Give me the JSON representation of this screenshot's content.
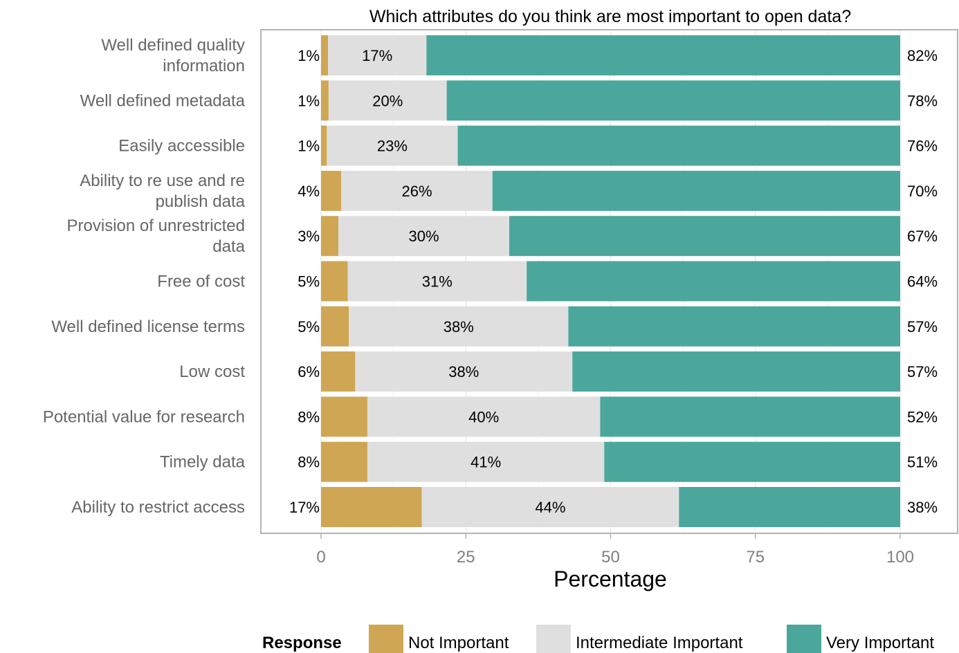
{
  "chart_data": {
    "type": "bar",
    "orientation": "horizontal",
    "stacked": true,
    "title": "Which attributes do you think are most important to open data?",
    "xlabel": "Percentage",
    "ylabel": "",
    "xlim": [
      0,
      100
    ],
    "xticks": [
      0,
      25,
      50,
      75,
      100
    ],
    "grid": true,
    "legend": {
      "title": "Response",
      "position": "bottom"
    },
    "categories": [
      "Well defined quality information",
      "Well defined metadata",
      "Easily accessible",
      "Ability to re use and re publish data",
      "Provision of unrestricted data",
      "Free of cost",
      "Well defined license terms",
      "Low cost",
      "Potential value for research",
      "Timely data",
      "Ability to restrict access"
    ],
    "category_lines": [
      [
        "Well defined quality",
        "information"
      ],
      [
        "Well defined metadata"
      ],
      [
        "Easily accessible"
      ],
      [
        "Ability to re use and re",
        "publish data"
      ],
      [
        "Provision of unrestricted",
        "data"
      ],
      [
        "Free of cost"
      ],
      [
        "Well defined license terms"
      ],
      [
        "Low cost"
      ],
      [
        "Potential value for research"
      ],
      [
        "Timely data"
      ],
      [
        "Ability to restrict access"
      ]
    ],
    "series": [
      {
        "name": "Not Important",
        "color": "#CFA654",
        "values": [
          1.2,
          1.3,
          1.0,
          3.5,
          3.0,
          4.6,
          4.8,
          5.9,
          8.0,
          8.0,
          17.4
        ],
        "labels": [
          "1%",
          "1%",
          "1%",
          "4%",
          "3%",
          "5%",
          "5%",
          "6%",
          "8%",
          "8%",
          "17%"
        ]
      },
      {
        "name": "Intermediate Important",
        "color": "#DFDFDF",
        "values": [
          17.0,
          20.4,
          22.6,
          26.1,
          29.5,
          30.9,
          37.9,
          37.5,
          40.2,
          40.9,
          44.4
        ],
        "labels": [
          "17%",
          "20%",
          "23%",
          "26%",
          "30%",
          "31%",
          "38%",
          "38%",
          "40%",
          "41%",
          "44%"
        ]
      },
      {
        "name": "Very Important",
        "color": "#4BA79B",
        "values": [
          81.8,
          78.3,
          76.4,
          70.4,
          67.5,
          64.5,
          57.3,
          56.6,
          51.8,
          51.1,
          38.2
        ],
        "labels": [
          "82%",
          "78%",
          "76%",
          "70%",
          "67%",
          "64%",
          "57%",
          "57%",
          "52%",
          "51%",
          "38%"
        ]
      }
    ]
  }
}
